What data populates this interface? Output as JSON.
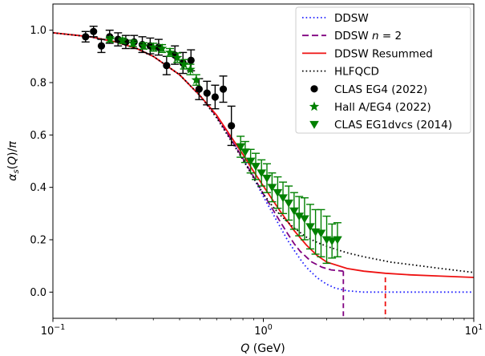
{
  "chart_data": {
    "type": "line",
    "xlabel": "Q (GeV)",
    "ylabel": "αs(Q)/π",
    "xscale": "log",
    "xlim": [
      0.1,
      10
    ],
    "ylim": [
      -0.1,
      1.1
    ],
    "x_ticks": [
      {
        "value": 0.1,
        "base": "10",
        "exp": "−1"
      },
      {
        "value": 1,
        "base": "10",
        "exp": "0"
      },
      {
        "value": 10,
        "base": "10",
        "exp": "1"
      }
    ],
    "y_ticks": [
      {
        "value": 0.0,
        "label": "0.0"
      },
      {
        "value": 0.2,
        "label": "0.2"
      },
      {
        "value": 0.4,
        "label": "0.4"
      },
      {
        "value": 0.6,
        "label": "0.6"
      },
      {
        "value": 0.8,
        "label": "0.8"
      },
      {
        "value": 1.0,
        "label": "1.0"
      }
    ],
    "legend_position": "top-right",
    "grid": false,
    "series": [
      {
        "name": "DDSW",
        "legend_label": "DDSW",
        "kind": "line",
        "style": "dotted",
        "color": "#1f1fff",
        "x": [
          0.1,
          0.15,
          0.2,
          0.25,
          0.3,
          0.4,
          0.5,
          0.6,
          0.7,
          0.8,
          0.9,
          1.0,
          1.1,
          1.2,
          1.3,
          1.4,
          1.5,
          1.6,
          1.8,
          2.0,
          2.2,
          2.5,
          3.0,
          4.0,
          6.0,
          10.0
        ],
        "y": [
          0.99,
          0.975,
          0.955,
          0.93,
          0.9,
          0.83,
          0.75,
          0.67,
          0.585,
          0.51,
          0.435,
          0.365,
          0.305,
          0.25,
          0.2,
          0.16,
          0.125,
          0.095,
          0.055,
          0.03,
          0.015,
          0.005,
          0.0,
          0.0,
          0.0,
          0.0
        ]
      },
      {
        "name": "DDSW n = 2",
        "legend_label": "DDSW ",
        "legend_math": "n = 2",
        "kind": "line",
        "style": "dashed",
        "color": "#800080",
        "x": [
          0.1,
          0.15,
          0.2,
          0.25,
          0.3,
          0.4,
          0.5,
          0.6,
          0.7,
          0.8,
          0.9,
          1.0,
          1.1,
          1.2,
          1.3,
          1.4,
          1.5,
          1.7,
          1.9,
          2.1,
          2.4
        ],
        "y": [
          0.99,
          0.975,
          0.955,
          0.93,
          0.9,
          0.83,
          0.75,
          0.67,
          0.585,
          0.51,
          0.44,
          0.375,
          0.32,
          0.27,
          0.225,
          0.185,
          0.155,
          0.115,
          0.095,
          0.085,
          0.08
        ],
        "drop_x": 2.4
      },
      {
        "name": "DDSW Resummed",
        "legend_label": "DDSW Resummed",
        "kind": "line",
        "style": "solid",
        "color": "#ee1111",
        "x": [
          0.1,
          0.15,
          0.2,
          0.25,
          0.3,
          0.4,
          0.5,
          0.6,
          0.7,
          0.8,
          0.9,
          1.0,
          1.1,
          1.2,
          1.4,
          1.6,
          1.8,
          2.0,
          2.5,
          3.0,
          3.8,
          5.0,
          7.0,
          10.0
        ],
        "y": [
          0.99,
          0.975,
          0.955,
          0.93,
          0.9,
          0.83,
          0.75,
          0.675,
          0.595,
          0.525,
          0.46,
          0.405,
          0.355,
          0.31,
          0.235,
          0.18,
          0.14,
          0.115,
          0.09,
          0.08,
          0.072,
          0.066,
          0.061,
          0.056
        ],
        "drop_x": 3.8
      },
      {
        "name": "HLFQCD",
        "legend_label": "HLFQCD",
        "kind": "line",
        "style": "dotted",
        "color": "#000000",
        "x": [
          0.1,
          0.15,
          0.2,
          0.25,
          0.3,
          0.4,
          0.5,
          0.6,
          0.7,
          0.8,
          0.9,
          1.0,
          1.1,
          1.2,
          1.4,
          1.6,
          1.8,
          2.0,
          2.5,
          3.0,
          4.0,
          5.0,
          7.0,
          10.0
        ],
        "y": [
          0.99,
          0.975,
          0.955,
          0.93,
          0.9,
          0.83,
          0.75,
          0.665,
          0.58,
          0.505,
          0.435,
          0.375,
          0.33,
          0.295,
          0.245,
          0.21,
          0.19,
          0.175,
          0.15,
          0.135,
          0.115,
          0.105,
          0.09,
          0.075
        ]
      },
      {
        "name": "CLAS EG4 (2022)",
        "legend_label": "CLAS EG4 (2022)",
        "kind": "errorbar",
        "marker": "circle",
        "color": "#000000",
        "x": [
          0.143,
          0.156,
          0.17,
          0.186,
          0.204,
          0.222,
          0.243,
          0.266,
          0.29,
          0.318,
          0.347,
          0.38,
          0.415,
          0.453,
          0.495,
          0.54,
          0.59,
          0.645,
          0.705
        ],
        "y": [
          0.975,
          0.995,
          0.94,
          0.975,
          0.965,
          0.955,
          0.955,
          0.945,
          0.94,
          0.935,
          0.865,
          0.905,
          0.875,
          0.885,
          0.775,
          0.76,
          0.745,
          0.775,
          0.635
        ],
        "err": [
          0.02,
          0.02,
          0.025,
          0.025,
          0.025,
          0.025,
          0.025,
          0.03,
          0.03,
          0.03,
          0.035,
          0.035,
          0.04,
          0.04,
          0.04,
          0.045,
          0.045,
          0.05,
          0.075
        ]
      },
      {
        "name": "Hall A/EG4 (2022)",
        "legend_label": "Hall A/EG4 (2022)",
        "kind": "errorbar",
        "marker": "star",
        "color": "#008000",
        "x": [
          0.187,
          0.214,
          0.24,
          0.27,
          0.3,
          0.33,
          0.36,
          0.39,
          0.42,
          0.45,
          0.48
        ],
        "y": [
          0.965,
          0.96,
          0.95,
          0.94,
          0.935,
          0.93,
          0.915,
          0.895,
          0.87,
          0.85,
          0.81
        ],
        "err": [
          0.01,
          0.01,
          0.012,
          0.012,
          0.015,
          0.015,
          0.015,
          0.018,
          0.018,
          0.02,
          0.02
        ]
      },
      {
        "name": "CLAS EG1dvcs (2014)",
        "legend_label": "CLAS EG1dvcs (2014)",
        "kind": "errorbar",
        "marker": "triangle-down",
        "color": "#008000",
        "x": [
          0.78,
          0.82,
          0.87,
          0.92,
          0.98,
          1.04,
          1.1,
          1.17,
          1.24,
          1.32,
          1.4,
          1.48,
          1.57,
          1.67,
          1.77,
          1.88,
          2.0,
          2.12,
          2.25
        ],
        "y": [
          0.555,
          0.535,
          0.5,
          0.48,
          0.455,
          0.435,
          0.4,
          0.38,
          0.36,
          0.34,
          0.31,
          0.29,
          0.28,
          0.25,
          0.23,
          0.225,
          0.2,
          0.195,
          0.2
        ],
        "err": [
          0.04,
          0.04,
          0.045,
          0.05,
          0.05,
          0.055,
          0.055,
          0.06,
          0.06,
          0.065,
          0.07,
          0.075,
          0.08,
          0.085,
          0.085,
          0.09,
          0.09,
          0.065,
          0.065
        ]
      }
    ]
  }
}
